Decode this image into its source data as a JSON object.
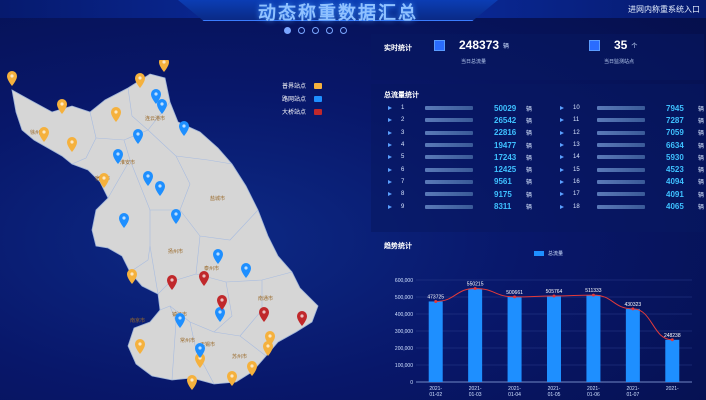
{
  "header": {
    "title": "动态称重数据汇总",
    "entry_link": "进网内称重系统入口"
  },
  "carousel": {
    "pages": 5,
    "active": 0
  },
  "map_legend": [
    {
      "label": "普界站点",
      "color": "#f5b13d"
    },
    {
      "label": "路网站点",
      "color": "#1e8fff"
    },
    {
      "label": "大桥站点",
      "color": "#c0282b"
    }
  ],
  "realtime": {
    "title": "实时统计",
    "total_flow": {
      "value": "248373",
      "unit": "辆",
      "label": "当日总流量"
    },
    "monitor": {
      "value": "35",
      "unit": "个",
      "label": "当日监测站点"
    }
  },
  "flow_stats": {
    "title": "总流量统计",
    "left": [
      {
        "no": "1",
        "value": "50029",
        "unit": "辆"
      },
      {
        "no": "2",
        "value": "26542",
        "unit": "辆"
      },
      {
        "no": "3",
        "value": "22816",
        "unit": "辆"
      },
      {
        "no": "4",
        "value": "19477",
        "unit": "辆"
      },
      {
        "no": "5",
        "value": "17243",
        "unit": "辆"
      },
      {
        "no": "6",
        "value": "12425",
        "unit": "辆"
      },
      {
        "no": "7",
        "value": "9561",
        "unit": "辆"
      },
      {
        "no": "8",
        "value": "9175",
        "unit": "辆"
      },
      {
        "no": "9",
        "value": "8311",
        "unit": "辆"
      }
    ],
    "right": [
      {
        "no": "10",
        "value": "7945",
        "unit": "辆"
      },
      {
        "no": "11",
        "value": "7287",
        "unit": "辆"
      },
      {
        "no": "12",
        "value": "7059",
        "unit": "辆"
      },
      {
        "no": "13",
        "value": "6634",
        "unit": "辆"
      },
      {
        "no": "14",
        "value": "5930",
        "unit": "辆"
      },
      {
        "no": "15",
        "value": "4523",
        "unit": "辆"
      },
      {
        "no": "16",
        "value": "4094",
        "unit": "辆"
      },
      {
        "no": "17",
        "value": "4091",
        "unit": "辆"
      },
      {
        "no": "18",
        "value": "4065",
        "unit": "辆"
      }
    ]
  },
  "trend": {
    "title": "趋势统计"
  },
  "chart_data": {
    "type": "bar",
    "legend": [
      "总流量"
    ],
    "categories": [
      "2021-01-02",
      "2021-01-03",
      "2021-01-04",
      "2021-01-05",
      "2021-01-06",
      "2021-01-07",
      "2021-01-08"
    ],
    "category_labels": [
      [
        "2021-",
        "01-02"
      ],
      [
        "2021-",
        "01-03"
      ],
      [
        "2021-",
        "01-04"
      ],
      [
        "2021-",
        "01-05"
      ],
      [
        "2021-",
        "01-06"
      ],
      [
        "2021-",
        "01-07"
      ],
      [
        "2021-",
        ""
      ]
    ],
    "series": [
      {
        "name": "总流量",
        "values": [
          473725,
          550215,
          500661,
          505764,
          511333,
          430323,
          248238
        ]
      }
    ],
    "data_labels": [
      "473725",
      "550215",
      "500661",
      "505764",
      "511333",
      "430323",
      "248238"
    ],
    "line_overlay": true,
    "ylim": [
      0,
      600000
    ],
    "yticks": [
      "0",
      "100,000",
      "200,000",
      "300,000",
      "400,000",
      "500,000",
      "600,000"
    ],
    "bar_color": "#1e8fff",
    "line_color": "#e23a3a"
  },
  "map_cities": [
    "徐州市",
    "连云港市",
    "宿迁市",
    "淮安市",
    "盐城市",
    "扬州市",
    "泰州市",
    "南京市",
    "镇江市",
    "常州市",
    "无锡市",
    "苏州市",
    "南通市"
  ]
}
